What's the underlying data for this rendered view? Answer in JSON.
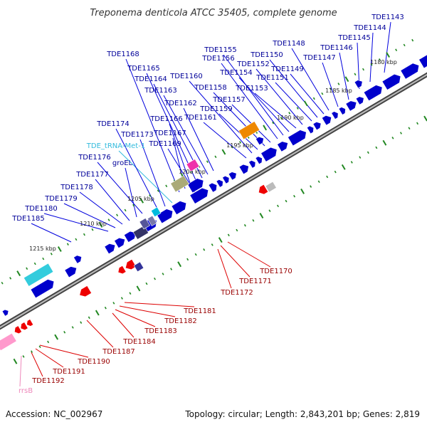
{
  "title": "Treponema denticola ATCC 35405, complete genome",
  "footer": {
    "accession": "Accession: NC_002967",
    "info": "Topology: circular; Length: 2,843,201 bp; Genes: 2,819"
  },
  "colors": {
    "forward_gene": "#0000cc",
    "reverse_gene": "#ee0000",
    "trna": "#00bbdd",
    "rrna": "#ff99cc",
    "other_feature": "#9999aa",
    "backbone": "#888888",
    "tick": "#228822"
  },
  "scale_ticks": [
    "1180 kbp",
    "1185 kbp",
    "1190 kbp",
    "1195 kbp",
    "1200 kbp",
    "1205 kbp",
    "1210 kbp",
    "1215 kbp"
  ],
  "top_labels": [
    {
      "id": "TDE1143",
      "color": "#000099"
    },
    {
      "id": "TDE1144",
      "color": "#000099"
    },
    {
      "id": "TDE1145",
      "color": "#000099"
    },
    {
      "id": "TDE1146",
      "color": "#000099"
    },
    {
      "id": "TDE1147",
      "color": "#000099"
    },
    {
      "id": "TDE1148",
      "color": "#000099"
    },
    {
      "id": "TDE1149",
      "color": "#000099"
    },
    {
      "id": "TDE1150",
      "color": "#000099"
    },
    {
      "id": "TDE1151",
      "color": "#000099"
    },
    {
      "id": "TDE1152",
      "color": "#000099"
    },
    {
      "id": "TDE1153",
      "color": "#000099"
    },
    {
      "id": "TDE1154",
      "color": "#000099"
    },
    {
      "id": "TDE1155",
      "color": "#000099"
    },
    {
      "id": "TDE1156",
      "color": "#000099"
    },
    {
      "id": "TDE1157",
      "color": "#000099"
    },
    {
      "id": "TDE1158",
      "color": "#000099"
    },
    {
      "id": "TDE1159",
      "color": "#000099"
    },
    {
      "id": "TDE1160",
      "color": "#000099"
    },
    {
      "id": "TDE1161",
      "color": "#000099"
    },
    {
      "id": "TDE1162",
      "color": "#000099"
    },
    {
      "id": "TDE1163",
      "color": "#000099"
    },
    {
      "id": "TDE1164",
      "color": "#000099"
    },
    {
      "id": "TDE1165",
      "color": "#000099"
    },
    {
      "id": "TDE1166",
      "color": "#000099"
    },
    {
      "id": "TDE1167",
      "color": "#000099"
    },
    {
      "id": "TDE1168",
      "color": "#000099"
    },
    {
      "id": "TDE1169",
      "color": "#000099"
    },
    {
      "id": "TDE_tRNA-Met-1",
      "color": "#33bbdd"
    },
    {
      "id": "TDE1173",
      "color": "#000099"
    },
    {
      "id": "TDE1174",
      "color": "#000099"
    },
    {
      "id": "TDE1176",
      "color": "#000099"
    },
    {
      "id": "groEL",
      "color": "#000099"
    },
    {
      "id": "TDE1177",
      "color": "#000099"
    },
    {
      "id": "TDE1178",
      "color": "#000099"
    },
    {
      "id": "TDE1179",
      "color": "#000099"
    },
    {
      "id": "TDE1180",
      "color": "#000099"
    },
    {
      "id": "TDE1185",
      "color": "#000099"
    }
  ],
  "bottom_labels": [
    {
      "id": "TDE1170",
      "color": "#990000"
    },
    {
      "id": "TDE1171",
      "color": "#990000"
    },
    {
      "id": "TDE1172",
      "color": "#990000"
    },
    {
      "id": "TDE1181",
      "color": "#990000"
    },
    {
      "id": "TDE1182",
      "color": "#990000"
    },
    {
      "id": "TDE1183",
      "color": "#990000"
    },
    {
      "id": "TDE1184",
      "color": "#990000"
    },
    {
      "id": "TDE1187",
      "color": "#990000"
    },
    {
      "id": "TDE1190",
      "color": "#990000"
    },
    {
      "id": "TDE1191",
      "color": "#990000"
    },
    {
      "id": "TDE1192",
      "color": "#990000"
    },
    {
      "id": "rrsB",
      "color": "#ee88bb"
    }
  ]
}
